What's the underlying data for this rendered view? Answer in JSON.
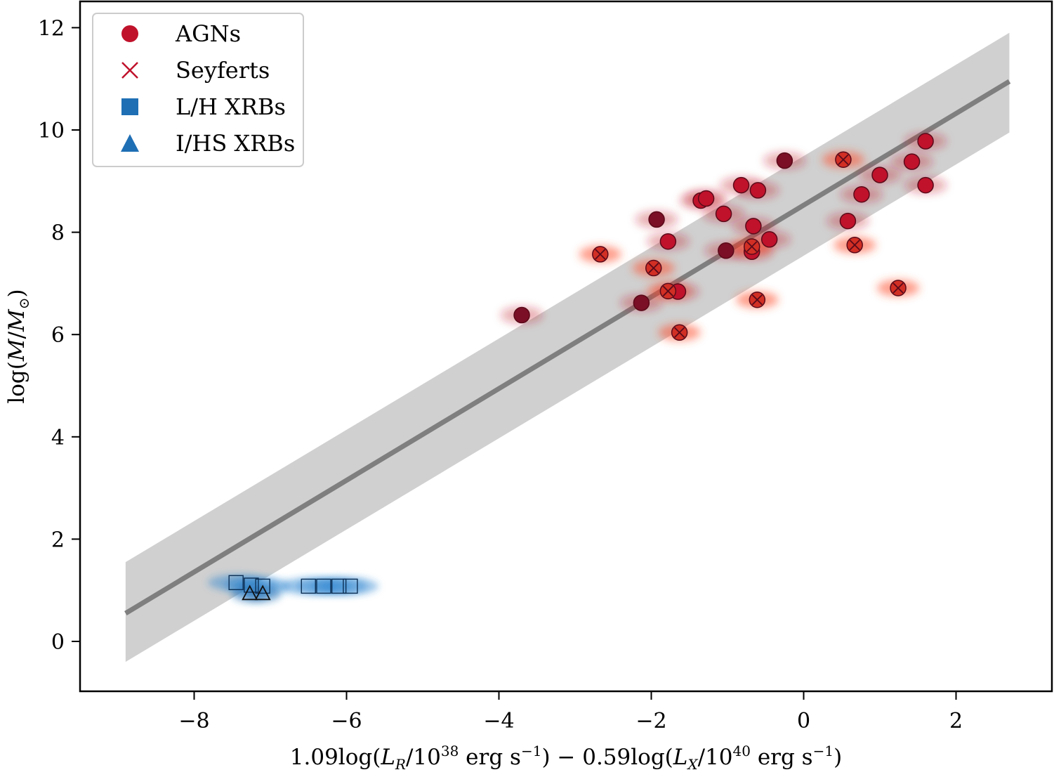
{
  "chart_data": {
    "type": "scatter",
    "title": "",
    "xlabel": "1.09log(L_R/10^38 erg s^-1) − 0.59log(L_X/10^40 erg s^-1)",
    "ylabel": "log(M/M_⊙)",
    "xlim": [
      -9.6,
      2.6
    ],
    "ylim": [
      -1.0,
      12.5
    ],
    "x_ticks": [
      {
        "value": -8,
        "label": "−8"
      },
      {
        "value": -6,
        "label": "−6"
      },
      {
        "value": -4,
        "label": "−4"
      },
      {
        "value": -2,
        "label": "−2"
      },
      {
        "value": 0,
        "label": "0"
      },
      {
        "value": 2,
        "label": "2"
      }
    ],
    "y_ticks": [
      {
        "value": 0,
        "label": "0"
      },
      {
        "value": 2,
        "label": "2"
      },
      {
        "value": 4,
        "label": "4"
      },
      {
        "value": 6,
        "label": "6"
      },
      {
        "value": 8,
        "label": "8"
      },
      {
        "value": 10,
        "label": "10"
      },
      {
        "value": 12,
        "label": "12"
      }
    ],
    "grid": false,
    "legend_position": "top-left",
    "fit_line": {
      "x": [
        -8.9,
        2.7
      ],
      "y": [
        0.55,
        10.95
      ],
      "color": "#7f7f7f"
    },
    "band": {
      "x": [
        -8.9,
        2.7
      ],
      "upper": [
        1.55,
        11.9
      ],
      "lower": [
        -0.4,
        9.95
      ],
      "color": "#d0d0d0"
    },
    "series": [
      {
        "name": "AGNs",
        "marker": "circle",
        "color": "#c0122b",
        "points": [
          {
            "x": 1.6,
            "y": 9.78
          },
          {
            "x": 1.42,
            "y": 9.38
          },
          {
            "x": 1.0,
            "y": 9.12
          },
          {
            "x": 1.6,
            "y": 8.92
          },
          {
            "x": 0.76,
            "y": 8.74
          },
          {
            "x": -0.25,
            "y": 9.4,
            "dark": true
          },
          {
            "x": -0.82,
            "y": 8.92
          },
          {
            "x": -0.6,
            "y": 8.82
          },
          {
            "x": -1.35,
            "y": 8.62
          },
          {
            "x": -1.28,
            "y": 8.66
          },
          {
            "x": -1.05,
            "y": 8.36
          },
          {
            "x": -1.93,
            "y": 8.25,
            "dark": true
          },
          {
            "x": 0.58,
            "y": 8.22
          },
          {
            "x": -0.66,
            "y": 8.12
          },
          {
            "x": -1.78,
            "y": 7.82
          },
          {
            "x": -0.45,
            "y": 7.86
          },
          {
            "x": -1.02,
            "y": 7.64,
            "dark": true
          },
          {
            "x": -0.68,
            "y": 7.62
          },
          {
            "x": -3.7,
            "y": 6.38,
            "dark": true
          },
          {
            "x": -2.13,
            "y": 6.62,
            "dark": true
          },
          {
            "x": -1.65,
            "y": 6.84
          }
        ]
      },
      {
        "name": "Seyferts",
        "marker": "x",
        "color": "#c0122b",
        "points": [
          {
            "x": 0.52,
            "y": 9.42
          },
          {
            "x": -2.67,
            "y": 7.57
          },
          {
            "x": -1.97,
            "y": 7.3
          },
          {
            "x": -1.78,
            "y": 6.85
          },
          {
            "x": -1.63,
            "y": 6.04
          },
          {
            "x": -0.61,
            "y": 6.68
          },
          {
            "x": 0.67,
            "y": 7.75
          },
          {
            "x": 1.24,
            "y": 6.91
          },
          {
            "x": -0.68,
            "y": 7.72
          }
        ]
      },
      {
        "name": "L/H XRBs",
        "marker": "square",
        "color": "#1f6fb5",
        "points": [
          {
            "x": -7.45,
            "y": 1.15
          },
          {
            "x": -7.25,
            "y": 1.1
          },
          {
            "x": -7.1,
            "y": 1.08
          },
          {
            "x": -6.5,
            "y": 1.08
          },
          {
            "x": -6.3,
            "y": 1.08
          },
          {
            "x": -6.1,
            "y": 1.08
          },
          {
            "x": -5.95,
            "y": 1.08
          }
        ]
      },
      {
        "name": "I/HS XRBs",
        "marker": "triangle",
        "color": "#1f6fb5",
        "points": [
          {
            "x": -7.27,
            "y": 0.93
          },
          {
            "x": -7.1,
            "y": 0.93
          }
        ]
      }
    ]
  }
}
